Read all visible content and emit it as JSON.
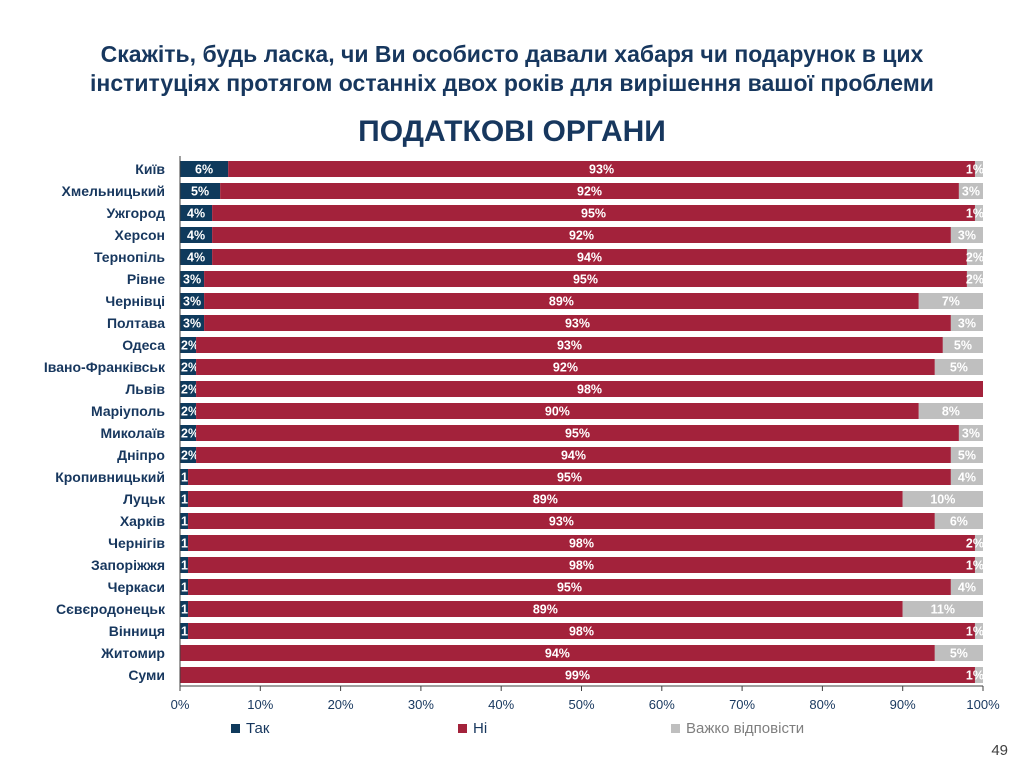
{
  "question": "Скажіть, будь ласка, чи Ви особисто давали хабаря чи подарунок в цих інституціях протягом останніх двох років для вирішення вашої проблеми",
  "page_number": "49",
  "colors": {
    "tak": "#0f3a5c",
    "ni": "#a3223b",
    "vazhko": "#bfbfbf",
    "text": "#17375e"
  },
  "chart_data": {
    "type": "bar",
    "orientation": "horizontal",
    "stacked": "percent",
    "title": "ПОДАТКОВІ ОРГАНИ",
    "categories": [
      "Київ",
      "Хмельницький",
      "Ужгород",
      "Херсон",
      "Тернопіль",
      "Рівне",
      "Чернівці",
      "Полтава",
      "Одеса",
      "Івано-Франківськ",
      "Львів",
      "Маріуполь",
      "Миколаїв",
      "Дніпро",
      "Кропивницький",
      "Луцьк",
      "Харків",
      "Чернігів",
      "Запоріжжя",
      "Черкаси",
      "Сєвєродонецьк",
      "Вінниця",
      "Житомир",
      "Суми"
    ],
    "series": [
      {
        "name": "Так",
        "values": [
          6,
          5,
          4,
          4,
          4,
          3,
          3,
          3,
          2,
          2,
          2,
          2,
          2,
          2,
          1,
          1,
          1,
          1,
          1,
          1,
          1,
          1,
          0,
          0
        ],
        "labels": [
          "6%",
          "5%",
          "4%",
          "4%",
          "4%",
          "3%",
          "3%",
          "3%",
          "2%",
          "2%",
          "2%",
          "2%",
          "2%",
          "2%",
          "1%",
          "1%",
          "1%",
          "1%",
          "1%",
          "1%",
          "1%",
          "1%",
          "",
          ""
        ]
      },
      {
        "name": "Ні",
        "values": [
          93,
          92,
          95,
          92,
          94,
          95,
          89,
          93,
          93,
          92,
          98,
          90,
          95,
          94,
          95,
          89,
          93,
          98,
          98,
          95,
          89,
          98,
          94,
          99
        ],
        "labels": [
          "93%",
          "92%",
          "95%",
          "92%",
          "94%",
          "95%",
          "89%",
          "93%",
          "93%",
          "92%",
          "98%",
          "90%",
          "95%",
          "94%",
          "95%",
          "89%",
          "93%",
          "98%",
          "98%",
          "95%",
          "89%",
          "98%",
          "94%",
          "99%"
        ]
      },
      {
        "name": "Важко відповісти",
        "values": [
          1,
          3,
          1,
          3,
          2,
          2,
          7,
          3,
          5,
          5,
          0,
          8,
          3,
          5,
          4,
          10,
          6,
          2,
          1,
          4,
          11,
          1,
          5,
          1
        ],
        "labels": [
          "1%",
          "3%",
          "1%",
          "3%",
          "2%",
          "2%",
          "7%",
          "3%",
          "5%",
          "5%",
          "",
          "8%",
          "3%",
          "5%",
          "4%",
          "10%",
          "6%",
          "2%",
          "1%",
          "4%",
          "11%",
          "1%",
          "5%",
          "1%"
        ]
      }
    ],
    "xlim": [
      0,
      100
    ],
    "xticks": [
      "0%",
      "10%",
      "20%",
      "30%",
      "40%",
      "50%",
      "60%",
      "70%",
      "80%",
      "90%",
      "100%"
    ],
    "grid": false,
    "legend_position": "bottom"
  }
}
